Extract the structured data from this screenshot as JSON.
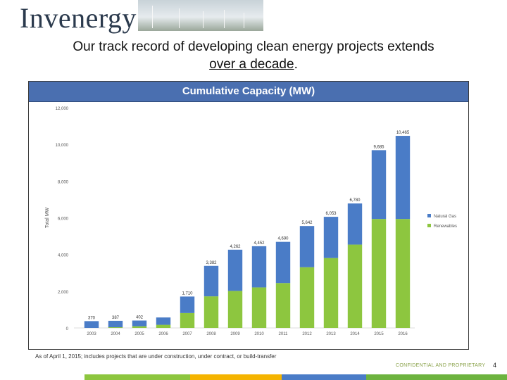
{
  "header": {
    "logo_text": "Invenergy",
    "subtitle_line1": "Our track record of developing clean energy projects extends",
    "subtitle_line2": "over a decade"
  },
  "footer": {
    "footnote": "As of April 1, 2015; includes projects that are under construction, under contract, or build-transfer",
    "confidential": "CONFIDENTIAL AND PROPRIETARY",
    "page_number": "4"
  },
  "colors": {
    "natural_gas": "#4a7cc7",
    "renewables": "#8dc63f",
    "title_bar": "#4a6fb0"
  },
  "chart_data": {
    "type": "bar",
    "stacked": true,
    "title": "Cumulative Capacity (MW)",
    "ylabel": "Total MW",
    "ylim": [
      0,
      12000
    ],
    "yticks": [
      "0",
      "2,000",
      "4,000",
      "6,000",
      "8,000",
      "10,000",
      "12,000"
    ],
    "categories": [
      "2003",
      "2004",
      "2005",
      "2006",
      "2007",
      "2008",
      "2009",
      "2010",
      "2011",
      "2012",
      "2013",
      "2014",
      "2015",
      "2016"
    ],
    "series": [
      {
        "name": "Renewables",
        "values": [
          0,
          37,
          92,
          170,
          810,
          1721,
          2017,
          2207,
          2445,
          3307,
          3808,
          4541,
          5936,
          5936
        ]
      },
      {
        "name": "Natural Gas",
        "values": [
          370,
          350,
          310,
          400,
          900,
          1661,
          2245,
          2245,
          2245,
          2245,
          2245,
          2239,
          3749,
          4529
        ]
      }
    ],
    "totals": [
      "370",
      "387",
      "402",
      "1,710",
      "3,382",
      "4,262",
      "4,452",
      "4,690",
      "5,642",
      "6,053",
      "6,780",
      "9,685",
      "10,465"
    ],
    "total_categories": [
      "2003",
      "2004",
      "2005",
      "2007",
      "2008",
      "2009",
      "2010",
      "2011",
      "2012",
      "2013",
      "2014",
      "2015",
      "2016"
    ],
    "legend_position": "right"
  }
}
